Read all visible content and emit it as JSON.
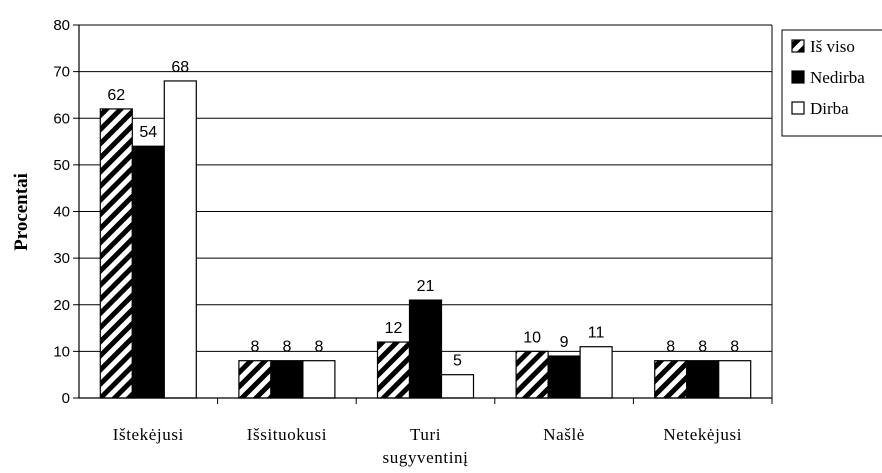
{
  "chart_data": {
    "type": "bar",
    "categories": [
      "Ištekėjusi",
      "Išsituokusi",
      "Turi sugyventinį",
      "Našlė",
      "Netekėjusi"
    ],
    "category_lines": [
      [
        "Ištekėjusi"
      ],
      [
        "Išsituokusi"
      ],
      [
        "Turi",
        "sugyventinį"
      ],
      [
        "Našlė"
      ],
      [
        "Netekėjusi"
      ]
    ],
    "series": [
      {
        "name": "Iš viso",
        "values": [
          62,
          8,
          12,
          10,
          8
        ],
        "fill": "hatch"
      },
      {
        "name": "Nedirba",
        "values": [
          54,
          8,
          21,
          9,
          8
        ],
        "fill": "#000000"
      },
      {
        "name": "Dirba",
        "values": [
          68,
          8,
          5,
          11,
          8
        ],
        "fill": "#ffffff"
      }
    ],
    "ylabel": "Procentai",
    "xlabel": "",
    "title": "",
    "ylim": [
      0,
      80
    ],
    "yticks": [
      0,
      10,
      20,
      30,
      40,
      50,
      60,
      70,
      80
    ],
    "grid": true,
    "legend_position": "top-right",
    "data_labels": true
  }
}
